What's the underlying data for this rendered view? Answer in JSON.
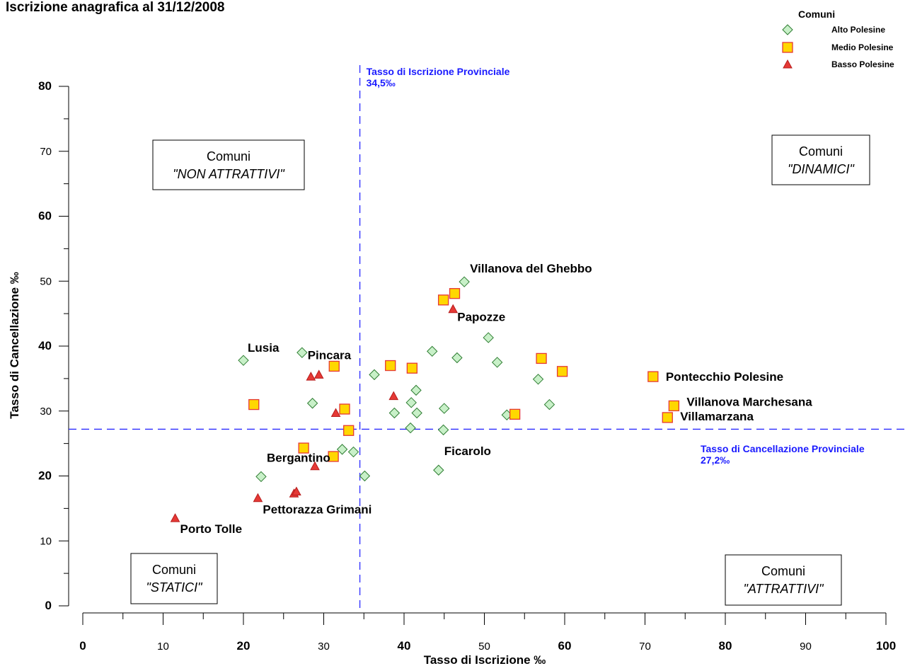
{
  "chart_data": {
    "type": "scatter",
    "title": "Iscrizione anagrafica al 31/12/2008",
    "xlabel": "Tasso di Iscrizione ‰",
    "ylabel": "Tasso di Cancellazione ‰",
    "xlim": [
      0,
      100
    ],
    "ylim": [
      0,
      80
    ],
    "x_ticks": [
      "0",
      "10",
      "20",
      "30",
      "40",
      "50",
      "60",
      "70",
      "80",
      "90",
      "100"
    ],
    "y_ticks": [
      "0",
      "10",
      "20",
      "30",
      "40",
      "50",
      "60",
      "70",
      "80"
    ],
    "grid": false,
    "legend": {
      "title": "Comuni",
      "position": "top-right",
      "entries": [
        "Alto Polesine",
        "Medio Polesine",
        "Basso Polesine"
      ]
    },
    "reference_lines": [
      {
        "axis": "x",
        "value": 34.5,
        "label_line1": "Tasso di Iscrizione Provinciale",
        "label_line2": "34,5‰"
      },
      {
        "axis": "y",
        "value": 27.2,
        "label_line1": "Tasso di Cancellazione Provinciale",
        "label_line2": "27,2‰"
      }
    ],
    "quadrant_labels": [
      {
        "line1": "Comuni",
        "line2": "\"NON ATTRATTIVI\"",
        "position": "top-left"
      },
      {
        "line1": "Comuni",
        "line2": "\"DINAMICI\"",
        "position": "top-right"
      },
      {
        "line1": "Comuni",
        "line2": "\"STATICI\"",
        "position": "bottom-left"
      },
      {
        "line1": "Comuni",
        "line2": "\"ATTRATTIVI\"",
        "position": "bottom-right"
      }
    ],
    "series": [
      {
        "name": "Alto Polesine",
        "marker": "diamond",
        "fill": "#c8f0c8",
        "stroke": "#2e7d32",
        "points": [
          {
            "x": 47.5,
            "y": 49.9,
            "label": "Villanova del Ghebbo"
          },
          {
            "x": 20.0,
            "y": 37.8,
            "label": "Lusia"
          },
          {
            "x": 27.3,
            "y": 39.0
          },
          {
            "x": 28.6,
            "y": 31.2
          },
          {
            "x": 36.3,
            "y": 35.6
          },
          {
            "x": 41.5,
            "y": 33.2
          },
          {
            "x": 43.5,
            "y": 39.2
          },
          {
            "x": 46.6,
            "y": 38.2
          },
          {
            "x": 50.5,
            "y": 41.3
          },
          {
            "x": 51.6,
            "y": 37.5
          },
          {
            "x": 56.7,
            "y": 34.9
          },
          {
            "x": 58.1,
            "y": 31.0
          },
          {
            "x": 52.8,
            "y": 29.4
          },
          {
            "x": 40.9,
            "y": 31.3
          },
          {
            "x": 41.6,
            "y": 29.7
          },
          {
            "x": 38.8,
            "y": 29.7
          },
          {
            "x": 45.0,
            "y": 30.4
          },
          {
            "x": 40.8,
            "y": 27.4
          },
          {
            "x": 44.9,
            "y": 27.1
          },
          {
            "x": 32.3,
            "y": 24.1
          },
          {
            "x": 33.7,
            "y": 23.7
          },
          {
            "x": 22.2,
            "y": 19.9
          },
          {
            "x": 35.1,
            "y": 20.0
          },
          {
            "x": 44.3,
            "y": 20.9,
            "label": "Ficarolo"
          }
        ]
      },
      {
        "name": "Medio Polesine",
        "marker": "square",
        "fill": "#ffd700",
        "stroke": "#e53935",
        "points": [
          {
            "x": 44.9,
            "y": 47.1
          },
          {
            "x": 46.3,
            "y": 48.1
          },
          {
            "x": 31.3,
            "y": 36.9
          },
          {
            "x": 38.3,
            "y": 37.0
          },
          {
            "x": 41.0,
            "y": 36.6
          },
          {
            "x": 57.1,
            "y": 38.1
          },
          {
            "x": 59.7,
            "y": 36.1
          },
          {
            "x": 71.0,
            "y": 35.3,
            "label": "Pontecchio Polesine"
          },
          {
            "x": 73.6,
            "y": 30.8,
            "label": "Villanova Marchesana"
          },
          {
            "x": 72.8,
            "y": 29.0,
            "label": "Villamarzana"
          },
          {
            "x": 21.3,
            "y": 31.0
          },
          {
            "x": 32.6,
            "y": 30.3
          },
          {
            "x": 33.1,
            "y": 27.0
          },
          {
            "x": 53.8,
            "y": 29.5
          },
          {
            "x": 27.5,
            "y": 24.3
          },
          {
            "x": 31.2,
            "y": 23.0
          }
        ]
      },
      {
        "name": "Basso Polesine",
        "marker": "triangle",
        "fill": "#e53935",
        "stroke": "#b71c1c",
        "points": [
          {
            "x": 46.1,
            "y": 45.7,
            "label": "Papozze"
          },
          {
            "x": 28.4,
            "y": 35.3
          },
          {
            "x": 29.4,
            "y": 35.6,
            "label": "Pincara"
          },
          {
            "x": 38.7,
            "y": 32.3
          },
          {
            "x": 31.5,
            "y": 29.7
          },
          {
            "x": 28.9,
            "y": 21.5,
            "label": "Bergantino"
          },
          {
            "x": 26.3,
            "y": 17.3
          },
          {
            "x": 26.6,
            "y": 17.6
          },
          {
            "x": 21.8,
            "y": 16.6,
            "label": "Pettorazza Grimani"
          },
          {
            "x": 11.5,
            "y": 13.5,
            "label": "Porto Tolle"
          }
        ]
      }
    ]
  }
}
